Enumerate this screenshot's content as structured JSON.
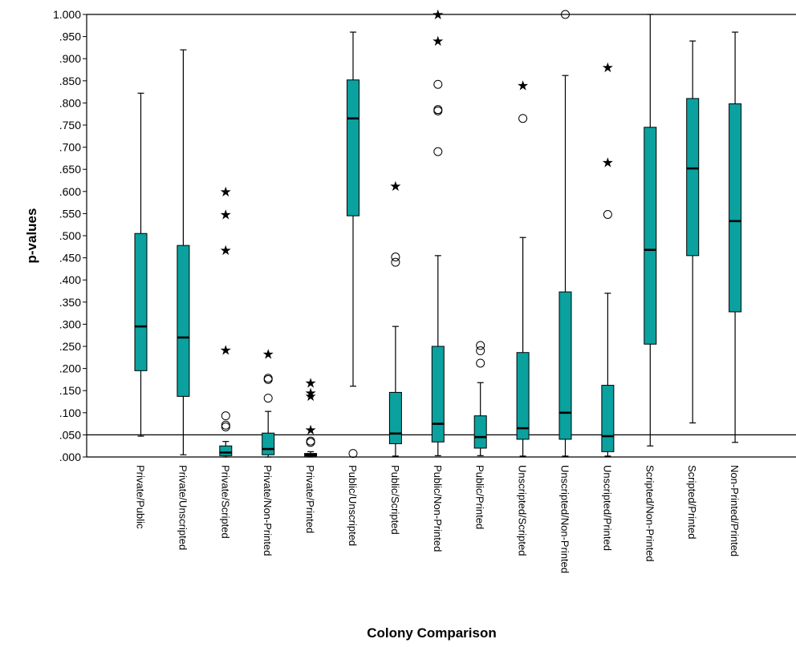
{
  "chart_data": {
    "type": "boxplot",
    "xlabel": "Colony Comparison",
    "ylabel": "p-values",
    "ylim": [
      0,
      1
    ],
    "yticks": [
      ".000",
      ".050",
      ".100",
      ".150",
      ".200",
      ".250",
      ".300",
      ".350",
      ".400",
      ".450",
      ".500",
      ".550",
      ".600",
      ".650",
      ".700",
      ".750",
      ".800",
      ".850",
      ".900",
      ".950",
      "1.000"
    ],
    "reference_line": 0.05,
    "box_color": "#0aa19f",
    "categories": [
      "Private/Public",
      "Private/Unscripted",
      "Private/Scripted",
      "Private/Non-Printed",
      "Private/Printed",
      "Public/Unscripted",
      "Public/Scripted",
      "Public/Non-Printed",
      "Public/Printed",
      "Unscripted/Scripted",
      "Unscripted/Non-Printed",
      "Unscripted/Printed",
      "Scripted/Non-Printed",
      "Scripted/Printed",
      "Non-Printed/Printed"
    ],
    "boxes": [
      {
        "min": 0.047,
        "q1": 0.195,
        "median": 0.295,
        "q3": 0.505,
        "max": 0.822,
        "outliers": [],
        "extremes": []
      },
      {
        "min": 0.005,
        "q1": 0.137,
        "median": 0.27,
        "q3": 0.478,
        "max": 0.92,
        "outliers": [],
        "extremes": []
      },
      {
        "min": 0.0,
        "q1": 0.003,
        "median": 0.01,
        "q3": 0.025,
        "max": 0.035,
        "outliers": [
          0.093,
          0.072,
          0.068
        ],
        "extremes": [
          0.242,
          0.467,
          0.548,
          0.6
        ]
      },
      {
        "min": 0.0,
        "q1": 0.005,
        "median": 0.018,
        "q3": 0.054,
        "max": 0.103,
        "outliers": [
          0.133,
          0.175,
          0.178
        ],
        "extremes": [
          0.233
        ]
      },
      {
        "min": 0.0,
        "q1": 0.002,
        "median": 0.005,
        "q3": 0.008,
        "max": 0.012,
        "outliers": [
          0.033,
          0.036
        ],
        "extremes": [
          0.062,
          0.138,
          0.145,
          0.168
        ]
      },
      {
        "min": 0.16,
        "q1": 0.545,
        "median": 0.765,
        "q3": 0.852,
        "max": 0.96,
        "outliers": [
          0.008
        ],
        "extremes": []
      },
      {
        "min": 0.002,
        "q1": 0.03,
        "median": 0.053,
        "q3": 0.146,
        "max": 0.295,
        "outliers": [
          0.44,
          0.452
        ],
        "extremes": [
          0.612
        ]
      },
      {
        "min": 0.003,
        "q1": 0.034,
        "median": 0.075,
        "q3": 0.25,
        "max": 0.455,
        "outliers": [
          0.69,
          0.782,
          0.785,
          0.842
        ],
        "extremes": [
          0.94,
          1.0
        ]
      },
      {
        "min": 0.003,
        "q1": 0.02,
        "median": 0.045,
        "q3": 0.093,
        "max": 0.168,
        "outliers": [
          0.212,
          0.24,
          0.252
        ],
        "extremes": []
      },
      {
        "min": 0.002,
        "q1": 0.04,
        "median": 0.065,
        "q3": 0.236,
        "max": 0.496,
        "outliers": [
          0.765
        ],
        "extremes": [
          0.84
        ]
      },
      {
        "min": 0.002,
        "q1": 0.04,
        "median": 0.1,
        "q3": 0.373,
        "max": 0.862,
        "outliers": [
          1.0
        ],
        "extremes": []
      },
      {
        "min": 0.002,
        "q1": 0.012,
        "median": 0.047,
        "q3": 0.162,
        "max": 0.37,
        "outliers": [
          0.548
        ],
        "extremes": [
          0.666,
          0.88
        ]
      },
      {
        "min": 0.025,
        "q1": 0.255,
        "median": 0.468,
        "q3": 0.745,
        "max": 1.0,
        "outliers": [],
        "extremes": []
      },
      {
        "min": 0.077,
        "q1": 0.455,
        "median": 0.652,
        "q3": 0.81,
        "max": 0.94,
        "outliers": [],
        "extremes": []
      },
      {
        "min": 0.033,
        "q1": 0.328,
        "median": 0.533,
        "q3": 0.798,
        "max": 0.96,
        "outliers": [],
        "extremes": []
      }
    ]
  }
}
